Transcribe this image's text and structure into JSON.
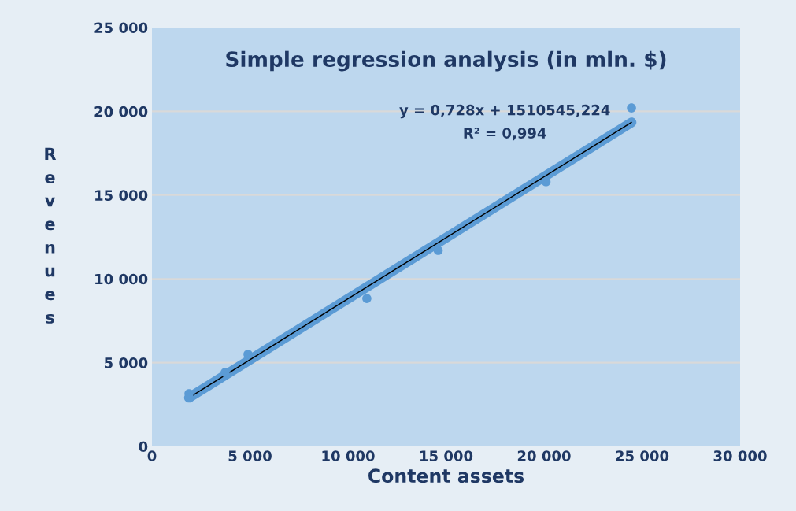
{
  "chart_data": {
    "type": "scatter",
    "title": "Simple regression analysis (in mln. $)",
    "xlabel": "Content assets",
    "ylabel": "Revenues",
    "series": [
      {
        "color": "#5b9bd5",
        "marker": "circle",
        "x": [
          1890,
          1900,
          3730,
          4900,
          10960,
          14600,
          20100,
          24460
        ],
        "values": [
          3150,
          2900,
          4410,
          5500,
          8830,
          11700,
          15800,
          20200
        ]
      },
      {
        "type": "line",
        "color": "#5b9bd5",
        "x": [
          1890,
          24460
        ],
        "values": [
          2910,
          19340
        ]
      }
    ],
    "xlim": [
      0,
      30000
    ],
    "xticks": [
      0,
      {
        "value": 5000,
        "label": "5 000"
      },
      {
        "value": 10000,
        "label": "10 000"
      },
      {
        "value": 15000,
        "label": "15 000"
      },
      {
        "value": 20000,
        "label": "20 000"
      },
      {
        "value": 25000,
        "label": "25 000"
      },
      {
        "value": 30000,
        "label": "30 000"
      }
    ],
    "ylim": [
      0,
      25000
    ],
    "yticks": [
      0,
      {
        "value": 5000,
        "label": "5 000"
      },
      {
        "value": 10000,
        "label": "10 000"
      },
      {
        "value": 15000,
        "label": "15 000"
      },
      {
        "value": 20000,
        "label": "20 000"
      },
      {
        "value": 25000,
        "label": "25 000"
      }
    ],
    "grid": "y",
    "annotations": [
      "y = 0,728x + 1510545,224",
      "R² = 0,994"
    ]
  }
}
